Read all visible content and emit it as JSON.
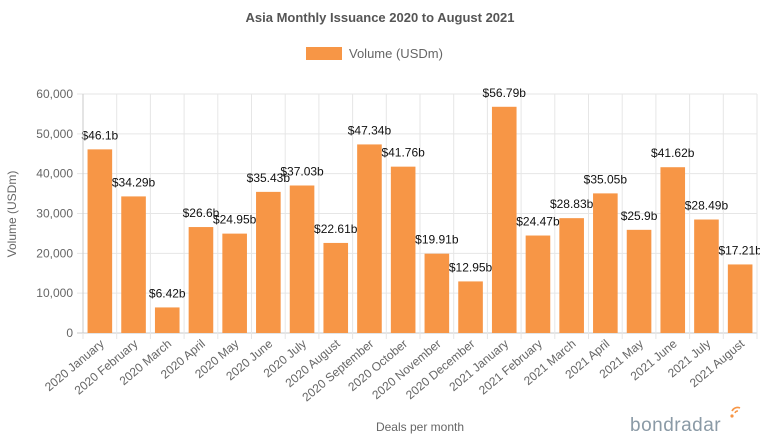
{
  "chart_data": {
    "type": "bar",
    "title": "Asia Monthly Issuance 2020 to August 2021",
    "xlabel": "Deals per month",
    "ylabel": "Volume (USDm)",
    "ylim": [
      0,
      60000
    ],
    "yticks": [
      0,
      10000,
      20000,
      30000,
      40000,
      50000,
      60000
    ],
    "ytick_labels": [
      "0",
      "10,000",
      "20,000",
      "30,000",
      "40,000",
      "50,000",
      "60,000"
    ],
    "grid": true,
    "legend_position": "top-center",
    "categories": [
      "2020 January",
      "2020 February",
      "2020 March",
      "2020 April",
      "2020 May",
      "2020 June",
      "2020 July",
      "2020 August",
      "2020 September",
      "2020 October",
      "2020 November",
      "2020 December",
      "2021 January",
      "2021 February",
      "2021 March",
      "2021 April",
      "2021 May",
      "2021 June",
      "2021 July",
      "2021 August"
    ],
    "series": [
      {
        "name": "Volume (USDm)",
        "color": "#f79646",
        "values": [
          46100,
          34290,
          6420,
          26600,
          24950,
          35430,
          37030,
          22610,
          47340,
          41760,
          19910,
          12950,
          56790,
          24470,
          28830,
          35050,
          25900,
          41620,
          28490,
          17210
        ],
        "data_labels": [
          "$46.1b",
          "$34.29b",
          "$6.42b",
          "$26.6b",
          "$24.95b",
          "$35.43b",
          "$37.03b",
          "$22.61b",
          "$47.34b",
          "$41.76b",
          "$19.91b",
          "$12.95b",
          "$56.79b",
          "$24.47b",
          "$28.83b",
          "$35.05b",
          "$25.9b",
          "$41.62b",
          "$28.49b",
          "$17.21b"
        ]
      }
    ]
  },
  "branding": {
    "logo_text": "bondradar",
    "logo_color": "#8a9aa6",
    "accent_color": "#f79646"
  }
}
